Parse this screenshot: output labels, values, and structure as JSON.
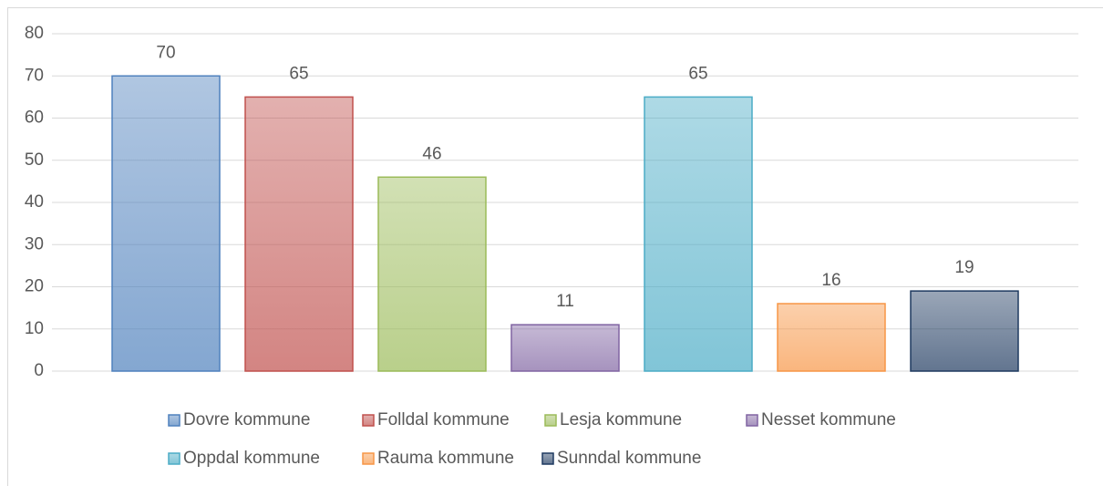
{
  "chart_data": {
    "type": "bar",
    "series": [
      {
        "name": "Dovre kommune",
        "color": "#4f81bd",
        "values": [
          70
        ]
      },
      {
        "name": "Folldal kommune",
        "color": "#c0504d",
        "values": [
          65
        ]
      },
      {
        "name": "Lesja kommune",
        "color": "#9bbb59",
        "values": [
          46
        ]
      },
      {
        "name": "Nesset kommune",
        "color": "#8064a2",
        "values": [
          11
        ]
      },
      {
        "name": "Oppdal kommune",
        "color": "#4bacc6",
        "values": [
          65
        ]
      },
      {
        "name": "Rauma kommune",
        "color": "#f79646",
        "values": [
          16
        ]
      },
      {
        "name": "Sunndal kommune",
        "color": "#1f3a60",
        "values": [
          19
        ]
      }
    ],
    "ylim": [
      0,
      80
    ],
    "yticks": [
      0,
      10,
      20,
      30,
      40,
      50,
      60,
      70,
      80
    ],
    "grid": true,
    "legend": "bottom"
  }
}
